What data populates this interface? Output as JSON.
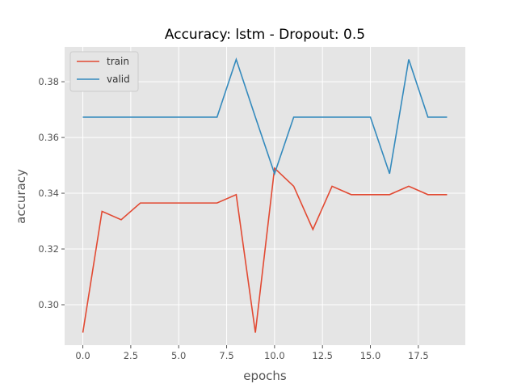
{
  "chart_data": {
    "type": "line",
    "title": "Accuracy: lstm - Dropout: 0.5",
    "xlabel": "epochs",
    "ylabel": "accuracy",
    "xlim": [
      -0.95,
      19.95
    ],
    "ylim": [
      0.2855,
      0.3925
    ],
    "xticks": [
      0.0,
      2.5,
      5.0,
      7.5,
      10.0,
      12.5,
      15.0,
      17.5
    ],
    "xtick_labels": [
      "0.0",
      "2.5",
      "5.0",
      "7.5",
      "10.0",
      "12.5",
      "15.0",
      "17.5"
    ],
    "yticks": [
      0.3,
      0.32,
      0.34,
      0.36,
      0.38
    ],
    "ytick_labels": [
      "0.30",
      "0.32",
      "0.34",
      "0.36",
      "0.38"
    ],
    "grid": true,
    "legend_position": "top-left",
    "x": [
      0,
      1,
      2,
      3,
      4,
      5,
      6,
      7,
      8,
      9,
      10,
      11,
      12,
      13,
      14,
      15,
      16,
      17,
      18,
      19
    ],
    "series": [
      {
        "name": "train",
        "color": "#E24A33",
        "values": [
          0.29,
          0.3335,
          0.3305,
          0.3365,
          0.3365,
          0.3365,
          0.3365,
          0.3365,
          0.3395,
          0.29,
          0.349,
          0.3425,
          0.327,
          0.3425,
          0.3395,
          0.3395,
          0.3395,
          0.3425,
          0.3395,
          0.3395
        ]
      },
      {
        "name": "valid",
        "color": "#348ABD",
        "values": [
          0.3673,
          0.3673,
          0.3673,
          0.3673,
          0.3673,
          0.3673,
          0.3673,
          0.3673,
          0.388,
          0.3673,
          0.347,
          0.3673,
          0.3673,
          0.3673,
          0.3673,
          0.3673,
          0.347,
          0.388,
          0.3673,
          0.3673
        ]
      }
    ]
  }
}
